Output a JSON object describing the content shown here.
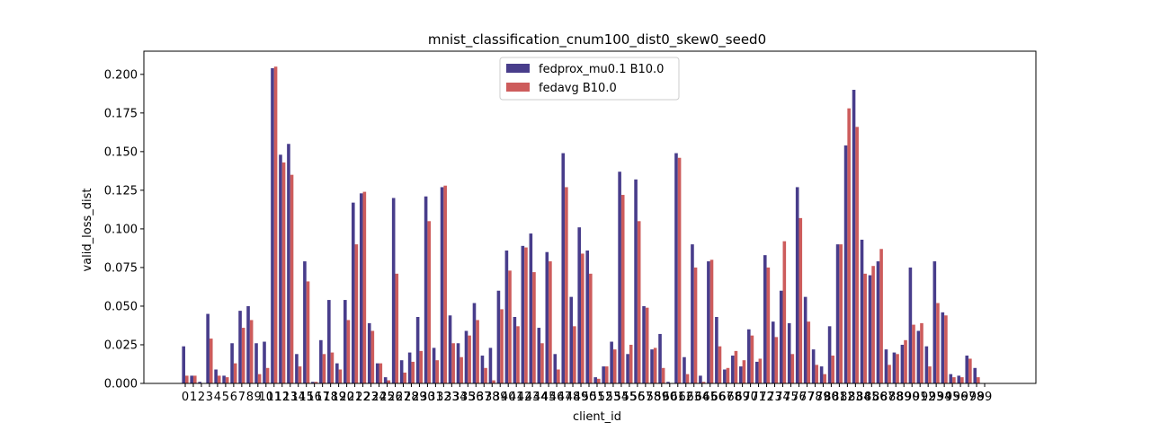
{
  "chart_data": {
    "type": "bar",
    "title": "mnist_classification_cnum100_dist0_skew0_seed0",
    "xlabel": "client_id",
    "ylabel": "valid_loss_dist",
    "ylim": [
      0,
      0.215
    ],
    "yticks": [
      "0.000",
      "0.025",
      "0.050",
      "0.075",
      "0.100",
      "0.125",
      "0.150",
      "0.175",
      "0.200"
    ],
    "legend_position": "top-center",
    "categories": [
      "0",
      "1",
      "2",
      "3",
      "4",
      "5",
      "6",
      "7",
      "8",
      "9",
      "10",
      "11",
      "12",
      "13",
      "14",
      "15",
      "16",
      "17",
      "18",
      "19",
      "20",
      "21",
      "22",
      "23",
      "24",
      "25",
      "26",
      "27",
      "28",
      "29",
      "30",
      "31",
      "32",
      "33",
      "34",
      "35",
      "36",
      "37",
      "38",
      "39",
      "40",
      "41",
      "42",
      "43",
      "44",
      "45",
      "46",
      "47",
      "48",
      "49",
      "50",
      "51",
      "52",
      "53",
      "54",
      "55",
      "56",
      "57",
      "58",
      "59",
      "60",
      "61",
      "62",
      "63",
      "64",
      "65",
      "66",
      "67",
      "68",
      "69",
      "70",
      "71",
      "72",
      "73",
      "74",
      "75",
      "76",
      "77",
      "78",
      "79",
      "80",
      "81",
      "82",
      "83",
      "84",
      "85",
      "86",
      "87",
      "88",
      "89",
      "90",
      "91",
      "92",
      "93",
      "94",
      "95",
      "96",
      "97",
      "98",
      "99"
    ],
    "series": [
      {
        "name": "fedprox_mu0.1 B10.0",
        "color": "#483d8b",
        "values": [
          0.024,
          0.005,
          0.001,
          0.045,
          0.009,
          0.005,
          0.026,
          0.047,
          0.05,
          0.026,
          0.027,
          0.204,
          0.148,
          0.155,
          0.019,
          0.079,
          0.001,
          0.028,
          0.054,
          0.013,
          0.054,
          0.117,
          0.123,
          0.039,
          0.013,
          0.004,
          0.12,
          0.015,
          0.02,
          0.043,
          0.121,
          0.023,
          0.127,
          0.044,
          0.026,
          0.034,
          0.052,
          0.018,
          0.023,
          0.06,
          0.086,
          0.043,
          0.089,
          0.097,
          0.036,
          0.085,
          0.019,
          0.149,
          0.056,
          0.101,
          0.086,
          0.004,
          0.011,
          0.027,
          0.137,
          0.019,
          0.132,
          0.05,
          0.022,
          0.032,
          0.001,
          0.149,
          0.017,
          0.09,
          0.005,
          0.079,
          0.043,
          0.009,
          0.018,
          0.011,
          0.035,
          0.014,
          0.083,
          0.04,
          0.06,
          0.039,
          0.127,
          0.056,
          0.022,
          0.011,
          0.037,
          0.09,
          0.154,
          0.19,
          0.093,
          0.07,
          0.079,
          0.022,
          0.02,
          0.025,
          0.075,
          0.034,
          0.024,
          0.079,
          0.046,
          0.006,
          0.005,
          0.018,
          0.01,
          0.0
        ]
      },
      {
        "name": "fedavg B10.0",
        "color": "#cd5c5c",
        "values": [
          0.005,
          0.005,
          0.0,
          0.029,
          0.005,
          0.004,
          0.013,
          0.036,
          0.041,
          0.006,
          0.01,
          0.205,
          0.143,
          0.135,
          0.011,
          0.066,
          0.001,
          0.019,
          0.02,
          0.009,
          0.041,
          0.09,
          0.124,
          0.034,
          0.013,
          0.002,
          0.071,
          0.007,
          0.014,
          0.021,
          0.105,
          0.015,
          0.128,
          0.026,
          0.017,
          0.031,
          0.041,
          0.01,
          0.002,
          0.048,
          0.073,
          0.037,
          0.088,
          0.072,
          0.026,
          0.079,
          0.009,
          0.127,
          0.037,
          0.084,
          0.071,
          0.003,
          0.011,
          0.022,
          0.122,
          0.025,
          0.105,
          0.049,
          0.023,
          0.01,
          0.0,
          0.146,
          0.006,
          0.075,
          0.001,
          0.08,
          0.024,
          0.01,
          0.021,
          0.015,
          0.031,
          0.016,
          0.075,
          0.03,
          0.092,
          0.019,
          0.107,
          0.04,
          0.012,
          0.006,
          0.018,
          0.09,
          0.178,
          0.166,
          0.071,
          0.076,
          0.087,
          0.012,
          0.019,
          0.028,
          0.038,
          0.039,
          0.011,
          0.052,
          0.044,
          0.004,
          0.004,
          0.016,
          0.004,
          0.0
        ]
      }
    ]
  }
}
